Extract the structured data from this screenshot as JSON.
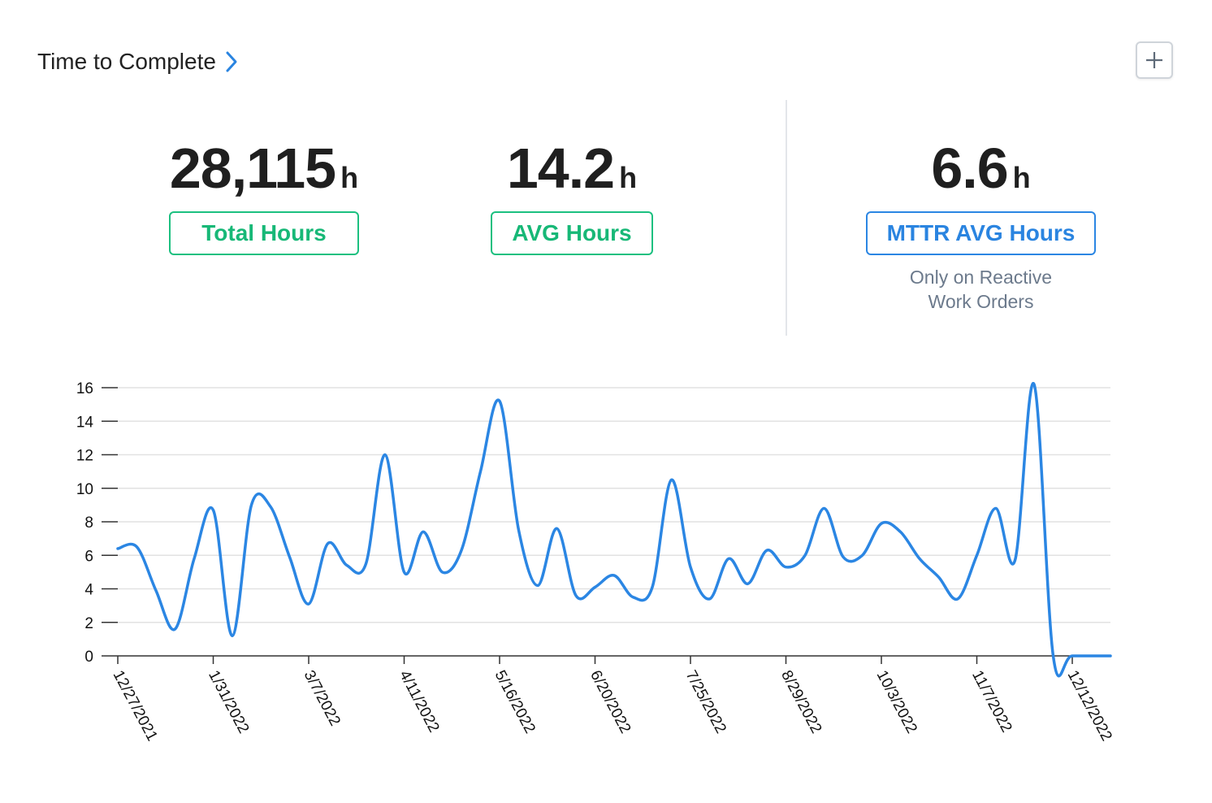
{
  "header": {
    "title": "Time to Complete"
  },
  "stats": {
    "total": {
      "value": "28,115",
      "unit": "h",
      "label": "Total Hours"
    },
    "avg": {
      "value": "14.2",
      "unit": "h",
      "label": "AVG Hours"
    },
    "mttr": {
      "value": "6.6",
      "unit": "h",
      "label": "MTTR AVG Hours",
      "note_line1": "Only on Reactive",
      "note_line2": "Work Orders"
    }
  },
  "colors": {
    "green": "#17b877",
    "blue": "#2a84e0",
    "line": "#2b86e3",
    "grid": "#e2e2e2"
  },
  "icons": {
    "header_link": "chevron-right-icon",
    "add_button": "plus-icon"
  },
  "chart_data": {
    "type": "line",
    "title": "",
    "xlabel": "",
    "ylabel": "",
    "ylim": [
      0,
      16
    ],
    "yticks": [
      0,
      2,
      4,
      6,
      8,
      10,
      12,
      14,
      16
    ],
    "grid": true,
    "x_tick_labels": [
      "12/27/2021",
      "1/31/2022",
      "3/7/2022",
      "4/11/2022",
      "5/16/2022",
      "6/20/2022",
      "7/25/2022",
      "8/29/2022",
      "10/3/2022",
      "11/7/2022",
      "12/12/2022"
    ],
    "x": [
      0,
      0.2,
      0.4,
      0.6,
      0.8,
      1,
      1.2,
      1.4,
      1.6,
      1.8,
      2,
      2.2,
      2.4,
      2.6,
      2.8,
      3,
      3.2,
      3.4,
      3.6,
      3.8,
      4,
      4.2,
      4.4,
      4.6,
      4.8,
      5,
      5.2,
      5.4,
      5.6,
      5.8,
      6,
      6.2,
      6.4,
      6.6,
      6.8,
      7,
      7.2,
      7.4,
      7.6,
      7.8,
      8,
      8.2,
      8.4,
      8.6,
      8.8,
      9,
      9.2,
      9.4,
      9.6,
      9.8,
      10,
      10.4
    ],
    "series": [
      {
        "values": [
          6.4,
          6.5,
          3.9,
          1.6,
          5.8,
          8.7,
          1.2,
          9.0,
          8.9,
          5.9,
          3.1,
          6.7,
          5.4,
          5.5,
          12.0,
          5.0,
          7.4,
          5.0,
          6.3,
          11.0,
          15.2,
          7.5,
          4.2,
          7.6,
          3.6,
          4.1,
          4.8,
          3.5,
          4.1,
          10.5,
          5.3,
          3.4,
          5.8,
          4.3,
          6.3,
          5.3,
          6.0,
          8.8,
          5.9,
          6.0,
          7.9,
          7.4,
          5.8,
          4.7,
          3.4,
          6.0,
          8.8,
          5.7,
          16.2,
          0,
          0,
          0
        ]
      }
    ]
  }
}
